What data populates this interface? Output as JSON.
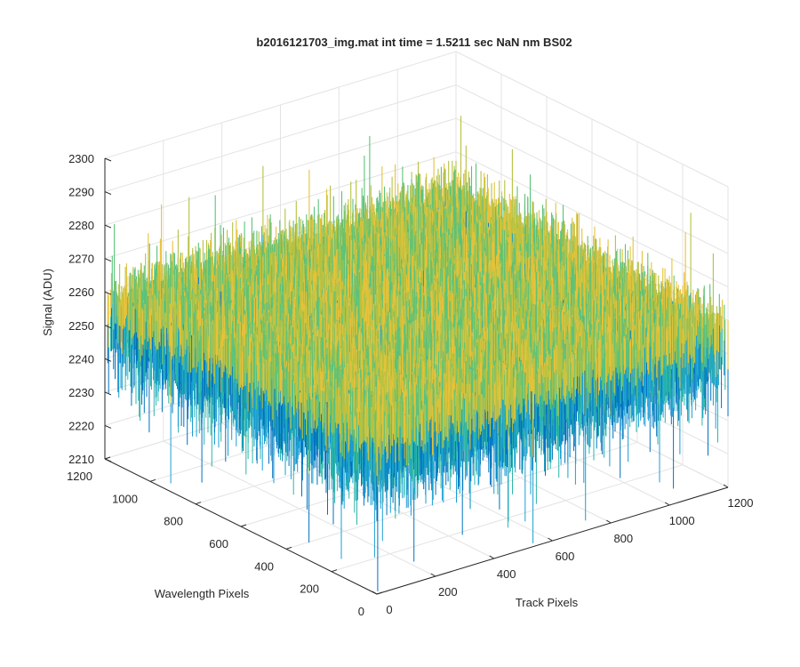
{
  "chart_data": {
    "type": "surface",
    "title": "b2016121703_img.mat int time = 1.5211 sec  NaN nm BS02",
    "x_axis": {
      "label": "Track Pixels",
      "range": [
        0,
        1200
      ],
      "ticks": [
        "0",
        "200",
        "400",
        "600",
        "800",
        "1000",
        "1200"
      ]
    },
    "y_axis": {
      "label": "Wavelength Pixels",
      "range": [
        0,
        1200
      ],
      "ticks": [
        "0",
        "200",
        "400",
        "600",
        "800",
        "1000",
        "1200"
      ]
    },
    "z_axis": {
      "label": "Signal (ADU)",
      "range": [
        2210,
        2300
      ],
      "ticks": [
        "2210",
        "2220",
        "2230",
        "2240",
        "2250",
        "2260",
        "2270",
        "2280",
        "2290",
        "2300"
      ]
    },
    "surface": {
      "mean_signal": 2252,
      "typical_min": 2225,
      "typical_max": 2275,
      "outlier_min": 2210,
      "outlier_max": 2290,
      "colormap": [
        "#0072bd",
        "#1a9fd4",
        "#2bb6a8",
        "#5cc27a",
        "#b5c240",
        "#e6c23a"
      ]
    },
    "grid": true,
    "box": false
  }
}
